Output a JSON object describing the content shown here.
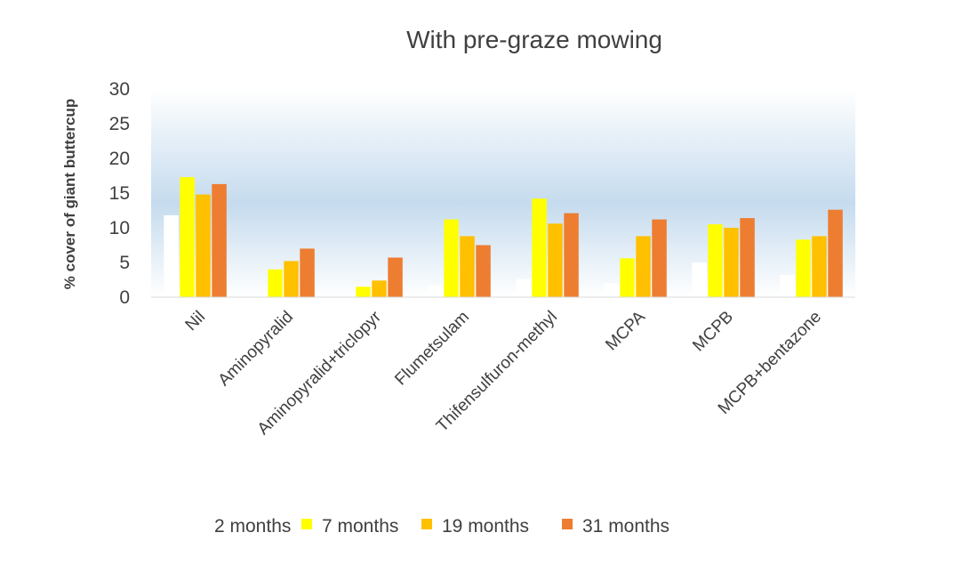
{
  "chart_data": {
    "type": "bar",
    "title": "With pre-graze mowing",
    "xlabel": "",
    "ylabel": "% cover of giant buttercup",
    "ylim": [
      0,
      30
    ],
    "yticks": [
      "0",
      "5",
      "10",
      "15",
      "20",
      "25",
      "30"
    ],
    "grid": false,
    "legend_position": "bottom",
    "categories": [
      "Nil",
      "Aminopyralid",
      "Aminopyralid+triclopyr",
      "Flumetsulam",
      "Thifensulfuron-methyl",
      "MCPA",
      "MCPB",
      "MCPB+bentazone"
    ],
    "series": [
      {
        "name": "2 months",
        "color": "#ffffff",
        "values": [
          11.8,
          0.4,
          0.4,
          1.7,
          2.6,
          2.0,
          5.0,
          3.2
        ]
      },
      {
        "name": "7 months",
        "color": "#ffff00",
        "values": [
          17.3,
          4.0,
          1.5,
          11.2,
          14.2,
          5.6,
          10.5,
          8.3
        ]
      },
      {
        "name": "19 months",
        "color": "#ffc000",
        "values": [
          14.8,
          5.2,
          2.4,
          8.8,
          10.6,
          8.8,
          10.0,
          8.8
        ]
      },
      {
        "name": "31 months",
        "color": "#ed7d31",
        "values": [
          16.3,
          7.0,
          5.7,
          7.5,
          12.1,
          11.2,
          11.4,
          12.6
        ]
      }
    ]
  }
}
